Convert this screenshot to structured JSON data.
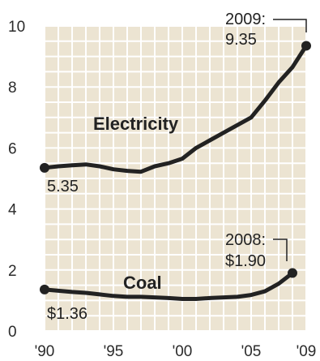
{
  "chart_data": {
    "type": "line",
    "title": "",
    "xlabel": "",
    "ylabel": "",
    "xlim": [
      1990,
      2009
    ],
    "ylim": [
      0,
      10
    ],
    "x_tick_labels": [
      "'90",
      "'95",
      "'00",
      "'05",
      "'09"
    ],
    "x_tick_values": [
      1990,
      1995,
      2000,
      2005,
      2009
    ],
    "y_tick_labels": [
      "0",
      "2",
      "4",
      "6",
      "8",
      "10"
    ],
    "y_tick_values": [
      0,
      2,
      4,
      6,
      8,
      10
    ],
    "grid": true,
    "colors": {
      "background": "#ece4d2",
      "grid": "#ffffff",
      "line": "#222222"
    },
    "series": [
      {
        "name": "Electricity",
        "x": [
          1990,
          1991,
          1992,
          1993,
          1994,
          1995,
          1996,
          1997,
          1998,
          1999,
          2000,
          2001,
          2002,
          2003,
          2004,
          2005,
          2006,
          2007,
          2008,
          2009
        ],
        "values": [
          5.35,
          5.4,
          5.43,
          5.46,
          5.4,
          5.3,
          5.25,
          5.22,
          5.4,
          5.5,
          5.65,
          6.0,
          6.25,
          6.5,
          6.75,
          7.0,
          7.55,
          8.15,
          8.65,
          9.35
        ]
      },
      {
        "name": "Coal",
        "x": [
          1990,
          1991,
          1992,
          1993,
          1994,
          1995,
          1996,
          1997,
          1998,
          1999,
          2000,
          2001,
          2002,
          2003,
          2004,
          2005,
          2006,
          2007,
          2008
        ],
        "values": [
          1.36,
          1.32,
          1.28,
          1.25,
          1.2,
          1.15,
          1.12,
          1.12,
          1.1,
          1.08,
          1.05,
          1.05,
          1.08,
          1.1,
          1.12,
          1.18,
          1.3,
          1.55,
          1.9
        ]
      }
    ],
    "annotations": {
      "elec_end_year": "2009:",
      "elec_end_value": "9.35",
      "elec_start_value": "5.35",
      "coal_end_year": "2008:",
      "coal_end_value": "$1.90",
      "coal_start_value": "$1.36"
    }
  }
}
